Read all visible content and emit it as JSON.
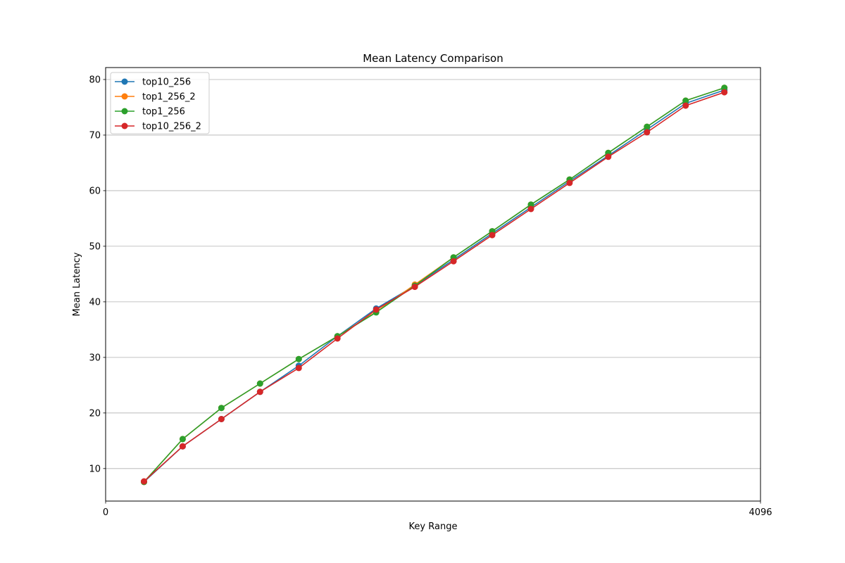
{
  "chart_data": {
    "type": "line",
    "title": "Mean Latency Comparison",
    "xlabel": "Key Range",
    "ylabel": "Mean Latency",
    "xlim": [
      0,
      4096
    ],
    "ylim": [
      4.15,
      82.15
    ],
    "xticks": [
      0,
      4096
    ],
    "xtick_labels": [
      "0",
      "4096"
    ],
    "yticks": [
      10,
      20,
      30,
      40,
      50,
      60,
      70,
      80
    ],
    "ytick_labels": [
      "10",
      "20",
      "30",
      "40",
      "50",
      "60",
      "70",
      "80"
    ],
    "grid": "horizontal",
    "legend_position": "top-left",
    "x": [
      240,
      482,
      724,
      966,
      1208,
      1450,
      1692,
      1934,
      2176,
      2418,
      2660,
      2902,
      3144,
      3386,
      3628,
      3870
    ],
    "series": [
      {
        "name": "top10_256",
        "color": "#1f77b4",
        "values": [
          7.6,
          14.0,
          18.9,
          23.8,
          28.5,
          33.8,
          38.8,
          42.9,
          47.6,
          52.3,
          57.0,
          61.7,
          66.3,
          71.0,
          75.7,
          78.1
        ]
      },
      {
        "name": "top1_256_2",
        "color": "#ff7f0e",
        "values": [
          7.6,
          15.3,
          20.9,
          25.3,
          29.7,
          33.8,
          38.2,
          43.1,
          48.0,
          52.7,
          57.5,
          62.0,
          66.8,
          71.5,
          76.2,
          78.5
        ]
      },
      {
        "name": "top1_256",
        "color": "#2ca02c",
        "values": [
          7.6,
          15.3,
          20.9,
          25.3,
          29.7,
          33.8,
          38.1,
          42.9,
          48.0,
          52.7,
          57.5,
          62.0,
          66.8,
          71.5,
          76.2,
          78.5
        ]
      },
      {
        "name": "top10_256_2",
        "color": "#d62728",
        "values": [
          7.7,
          14.0,
          18.9,
          23.8,
          28.1,
          33.4,
          38.6,
          42.7,
          47.3,
          52.0,
          56.7,
          61.4,
          66.1,
          70.5,
          75.3,
          77.7
        ]
      }
    ]
  }
}
